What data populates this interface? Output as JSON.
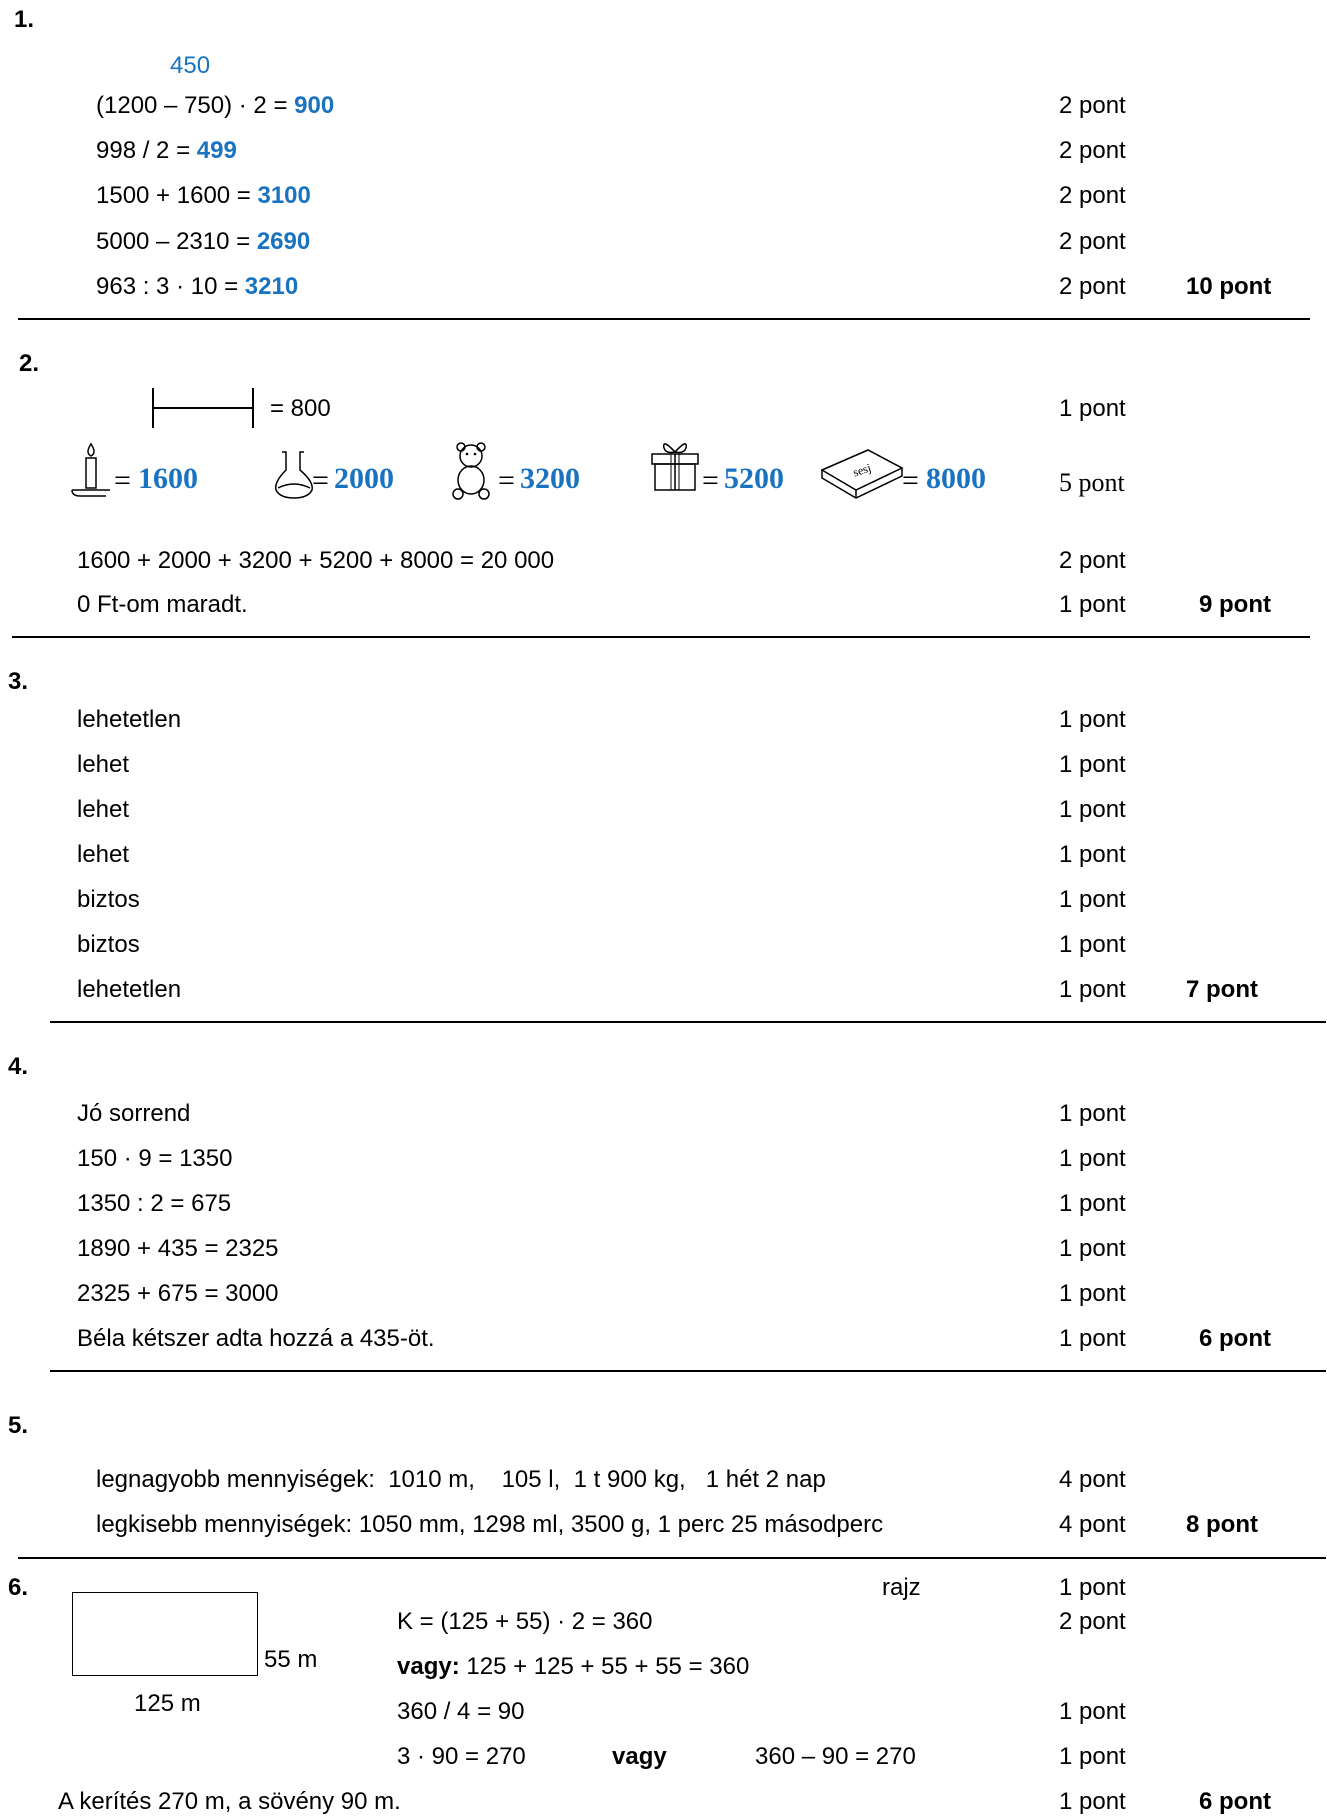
{
  "s1": {
    "num": "1.",
    "hint": "450",
    "rows": [
      {
        "expr": "(1200 – 750) · 2 = ",
        "ans": "900",
        "pts": "2 pont"
      },
      {
        "expr": "998 / 2 = ",
        "ans": "499",
        "pts": "2 pont"
      },
      {
        "expr": "1500 + 1600 = ",
        "ans": "3100",
        "pts": "2 pont"
      },
      {
        "expr": "5000 – 2310 = ",
        "ans": "2690",
        "pts": "2 pont"
      },
      {
        "expr": "963 : 3 · 10 = ",
        "ans": "3210",
        "pts": "2 pont"
      }
    ],
    "total": "10 pont"
  },
  "s2": {
    "num": "2.",
    "scale_text": "= 800",
    "scale_pts": "1 pont",
    "items": [
      {
        "icon": "candle-icon",
        "value": "1600"
      },
      {
        "icon": "decanter-icon",
        "value": "2000"
      },
      {
        "icon": "teddy-bear-icon",
        "value": "3200"
      },
      {
        "icon": "gift-box-icon",
        "value": "5200"
      },
      {
        "icon": "chessboard-box-icon",
        "value": "8000"
      }
    ],
    "eq": "=",
    "items_pts": "5 pont",
    "box_label": "sesj",
    "sum": "1600 + 2000 + 3200 + 5200 + 8000 = 20 000",
    "sum_pts": "2 pont",
    "remain": "0 Ft-om maradt.",
    "remain_pts": "1 pont",
    "total": "9 pont"
  },
  "s3": {
    "num": "3.",
    "rows": [
      {
        "text": "lehetetlen",
        "pts": "1 pont"
      },
      {
        "text": "lehet",
        "pts": "1 pont"
      },
      {
        "text": "lehet",
        "pts": "1 pont"
      },
      {
        "text": "lehet",
        "pts": "1 pont"
      },
      {
        "text": "biztos",
        "pts": "1 pont"
      },
      {
        "text": "biztos",
        "pts": "1 pont"
      },
      {
        "text": "lehetetlen",
        "pts": "1 pont"
      }
    ],
    "total": "7 pont"
  },
  "s4": {
    "num": "4.",
    "rows": [
      {
        "text": "Jó sorrend",
        "pts": "1 pont"
      },
      {
        "text": "150 · 9 = 1350",
        "pts": "1 pont"
      },
      {
        "text": "1350 : 2 = 675",
        "pts": "1 pont"
      },
      {
        "text": "1890 + 435 = 2325",
        "pts": "1 pont"
      },
      {
        "text": "2325 + 675 = 3000",
        "pts": "1 pont"
      },
      {
        "text": "Béla kétszer adta hozzá a 435-öt.",
        "pts": "1 pont"
      }
    ],
    "total": "6 pont"
  },
  "s5": {
    "num": "5.",
    "rows": [
      {
        "text": "legnagyobb mennyiségek:  1010 m,    105 l,  1 t 900 kg,   1 hét 2 nap",
        "pts": "4 pont"
      },
      {
        "text": "legkisebb mennyiségek: 1050 mm, 1298 ml, 3500 g, 1 perc 25 másodperc",
        "pts": "4 pont"
      }
    ],
    "total": "8 pont"
  },
  "s6": {
    "num": "6.",
    "rajz": "rajz",
    "rajz_pts": "1 pont",
    "side_label": "55 m",
    "bottom_label": "125 m",
    "k_line": "K = (125 + 55) · 2 = 360",
    "k_pts": "2 pont",
    "vagy_bold": "vagy:",
    "vagy_rest": " 125 + 125 + 55 + 55 = 360",
    "div_line": "360 / 4 = 90",
    "div_pts": "1 pont",
    "mul_line": "3 · 90 = 270",
    "vagy2": "vagy",
    "alt_line": "360 – 90 = 270",
    "mul_pts": "1 pont",
    "conclusion": "A kerítés 270 m, a sövény 90 m.",
    "conclusion_pts": "1 pont",
    "total": "6 pont"
  }
}
